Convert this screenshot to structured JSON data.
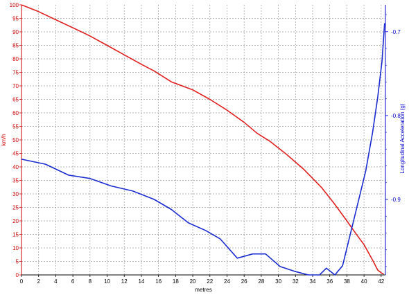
{
  "chart_data": {
    "type": "line",
    "xlabel": "metres",
    "y_left_label": "km/h",
    "y_right_label": "Longitudinal Acceleration (g)",
    "grid": true,
    "xlim": [
      0,
      42.5
    ],
    "ylim_left": [
      0,
      100
    ],
    "ylim_right": [
      -0.99,
      -0.668
    ],
    "x_ticks": [
      0,
      2,
      4,
      6,
      8,
      10,
      12,
      14,
      16,
      18,
      20,
      22,
      24,
      26,
      28,
      30,
      32,
      34,
      36,
      38,
      40,
      42
    ],
    "y_left_ticks": [
      0,
      5,
      10,
      15,
      20,
      25,
      30,
      35,
      40,
      45,
      50,
      55,
      60,
      65,
      70,
      75,
      80,
      85,
      90,
      95,
      100
    ],
    "y_right_ticks": [
      -0.9,
      -0.8,
      -0.7
    ],
    "colors": {
      "speed": "#e02020",
      "accel": "#1a2bd0",
      "left_axis": "#cc0000",
      "right_axis": "#0000cc",
      "grid": "#9a9a9a"
    },
    "series": [
      {
        "axis": "left",
        "color": "#e02020",
        "x": [
          0,
          2,
          4,
          6,
          8,
          10,
          12,
          14,
          15.5,
          17.5,
          20,
          22,
          24,
          26,
          27.5,
          29,
          31,
          33,
          35,
          36.5,
          38,
          39,
          40,
          41,
          41.6,
          42,
          42.3
        ],
        "y": [
          100,
          97.5,
          94.5,
          91.5,
          88.5,
          85,
          81.5,
          78,
          75.5,
          71.5,
          68.5,
          65,
          61,
          56.5,
          52.5,
          49.5,
          44.5,
          39,
          32.5,
          26.5,
          20,
          15.5,
          11.2,
          5.5,
          1.8,
          0.8,
          0.3
        ]
      },
      {
        "axis": "right",
        "color": "#1a2bd0",
        "x": [
          0,
          2.8,
          5.5,
          8,
          10.5,
          13,
          15.5,
          17.5,
          19.5,
          21.5,
          23.2,
          25.2,
          27,
          28.5,
          30.2,
          32,
          33.5,
          34.8,
          35.6,
          36.6,
          37.5,
          39.2,
          40.2,
          41,
          41.6,
          42.1,
          42.4
        ],
        "y": [
          -0.852,
          -0.858,
          -0.871,
          -0.875,
          -0.884,
          -0.89,
          -0.9,
          -0.912,
          -0.928,
          -0.937,
          -0.947,
          -0.97,
          -0.965,
          -0.965,
          -0.98,
          -0.986,
          -0.99,
          -0.99,
          -0.982,
          -0.99,
          -0.979,
          -0.908,
          -0.866,
          -0.82,
          -0.778,
          -0.735,
          -0.69
        ]
      }
    ]
  }
}
